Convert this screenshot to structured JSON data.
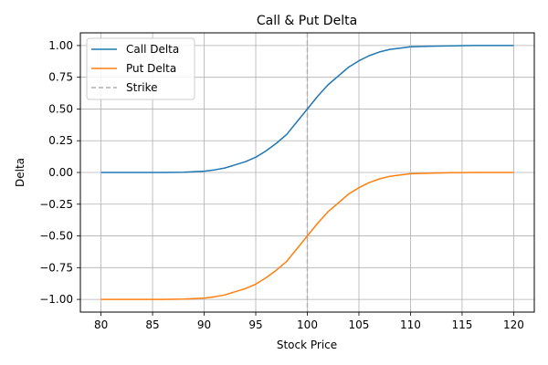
{
  "chart_data": {
    "type": "line",
    "title": "Call & Put Delta",
    "xlabel": "Stock Price",
    "ylabel": "Delta",
    "xlim": [
      78,
      122
    ],
    "ylim": [
      -1.1,
      1.1
    ],
    "xticks": [
      80,
      85,
      90,
      95,
      100,
      105,
      110,
      115,
      120
    ],
    "xtick_labels": [
      "80",
      "85",
      "90",
      "95",
      "100",
      "105",
      "110",
      "115",
      "120"
    ],
    "yticks": [
      -1.0,
      -0.75,
      -0.5,
      -0.25,
      0.0,
      0.25,
      0.5,
      0.75,
      1.0
    ],
    "ytick_labels": [
      "−1.00",
      "−0.75",
      "−0.50",
      "−0.25",
      "0.00",
      "0.25",
      "0.50",
      "0.75",
      "1.00"
    ],
    "grid": true,
    "legend_position": "upper-left",
    "x": [
      80,
      82,
      84,
      86,
      88,
      90,
      91,
      92,
      93,
      94,
      95,
      96,
      97,
      98,
      99,
      100,
      101,
      102,
      103,
      104,
      105,
      106,
      107,
      108,
      109,
      110,
      112,
      114,
      116,
      118,
      120
    ],
    "series": [
      {
        "name": "Call Delta",
        "color": "#1f77b4",
        "style": "solid",
        "values": [
          0.0,
          0.0,
          0.0,
          0.0,
          0.002,
          0.01,
          0.02,
          0.035,
          0.06,
          0.085,
          0.12,
          0.17,
          0.23,
          0.3,
          0.4,
          0.5,
          0.6,
          0.69,
          0.76,
          0.83,
          0.88,
          0.92,
          0.95,
          0.97,
          0.98,
          0.99,
          0.995,
          0.998,
          1.0,
          1.0,
          1.0
        ]
      },
      {
        "name": "Put Delta",
        "color": "#ff7f0e",
        "style": "solid",
        "values": [
          -1.0,
          -1.0,
          -1.0,
          -1.0,
          -0.998,
          -0.99,
          -0.98,
          -0.965,
          -0.94,
          -0.915,
          -0.88,
          -0.83,
          -0.77,
          -0.7,
          -0.6,
          -0.5,
          -0.4,
          -0.31,
          -0.24,
          -0.17,
          -0.12,
          -0.08,
          -0.05,
          -0.03,
          -0.02,
          -0.01,
          -0.005,
          -0.002,
          0.0,
          0.0,
          0.0
        ]
      }
    ],
    "reference_lines": [
      {
        "name": "Strike",
        "orientation": "vertical",
        "x": 100,
        "color": "#b0b0b0",
        "style": "dashed"
      }
    ]
  }
}
